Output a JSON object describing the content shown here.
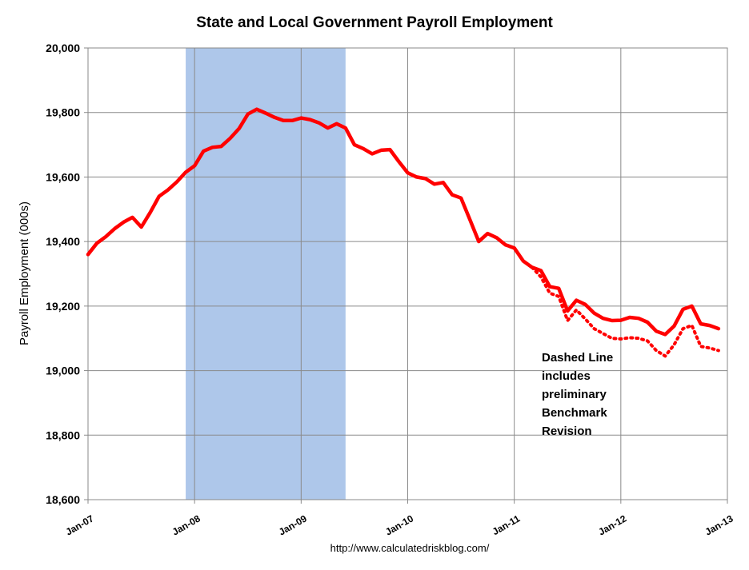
{
  "chart_data": {
    "type": "line",
    "title": "State and Local Government Payroll Employment",
    "ylabel": "Payroll Employment (000s)",
    "xlabel": "",
    "ylim": [
      18600,
      20000
    ],
    "yticks": [
      "18,600",
      "18,800",
      "19,000",
      "19,200",
      "19,400",
      "19,600",
      "19,800",
      "20,000"
    ],
    "yticks_values": [
      18600,
      18800,
      19000,
      19200,
      19400,
      19600,
      19800,
      20000
    ],
    "xticks": [
      "Jan-07",
      "Jan-08",
      "Jan-09",
      "Jan-10",
      "Jan-11",
      "Jan-12",
      "Jan-13"
    ],
    "xlim": [
      "2007-01",
      "2013-01"
    ],
    "grid": true,
    "recession_shading": {
      "start": "2007-12",
      "end": "2009-06",
      "color": "#aec7ea"
    },
    "line_color": "#ff0000",
    "series": [
      {
        "style": "solid",
        "x": [
          "2007-01",
          "2007-02",
          "2007-03",
          "2007-04",
          "2007-05",
          "2007-06",
          "2007-07",
          "2007-08",
          "2007-09",
          "2007-10",
          "2007-11",
          "2007-12",
          "2008-01",
          "2008-02",
          "2008-03",
          "2008-04",
          "2008-05",
          "2008-06",
          "2008-07",
          "2008-08",
          "2008-09",
          "2008-10",
          "2008-11",
          "2008-12",
          "2009-01",
          "2009-02",
          "2009-03",
          "2009-04",
          "2009-05",
          "2009-06",
          "2009-07",
          "2009-08",
          "2009-09",
          "2009-10",
          "2009-11",
          "2009-12",
          "2010-01",
          "2010-02",
          "2010-03",
          "2010-04",
          "2010-05",
          "2010-06",
          "2010-07",
          "2010-08",
          "2010-09",
          "2010-10",
          "2010-11",
          "2010-12",
          "2011-01",
          "2011-02",
          "2011-03",
          "2011-04",
          "2011-05",
          "2011-06",
          "2011-07",
          "2011-08",
          "2011-09",
          "2011-10",
          "2011-11",
          "2011-12",
          "2012-01",
          "2012-02",
          "2012-03",
          "2012-04",
          "2012-05",
          "2012-06",
          "2012-07",
          "2012-08",
          "2012-09",
          "2012-10",
          "2012-11",
          "2012-12"
        ],
        "values": [
          19360,
          19395,
          19415,
          19440,
          19460,
          19475,
          19445,
          19490,
          19540,
          19560,
          19585,
          19615,
          19635,
          19680,
          19692,
          19695,
          19720,
          19750,
          19795,
          19810,
          19798,
          19785,
          19775,
          19775,
          19783,
          19778,
          19768,
          19752,
          19765,
          19752,
          19700,
          19688,
          19672,
          19683,
          19685,
          19648,
          19613,
          19600,
          19595,
          19578,
          19583,
          19545,
          19535,
          19468,
          19400,
          19425,
          19412,
          19390,
          19380,
          19340,
          19320,
          19310,
          19260,
          19255,
          19185,
          19218,
          19205,
          19178,
          19162,
          19155,
          19156,
          19165,
          19162,
          19150,
          19122,
          19112,
          19138,
          19190,
          19200,
          19145,
          19140,
          19130
        ]
      },
      {
        "style": "dotted",
        "x": [
          "2011-03",
          "2011-04",
          "2011-05",
          "2011-06",
          "2011-07",
          "2011-08",
          "2011-09",
          "2011-10",
          "2011-11",
          "2011-12",
          "2012-01",
          "2012-02",
          "2012-03",
          "2012-04",
          "2012-05",
          "2012-06",
          "2012-07",
          "2012-08",
          "2012-09",
          "2012-10",
          "2012-11",
          "2012-12"
        ],
        "values": [
          19320,
          19290,
          19240,
          19230,
          19155,
          19188,
          19160,
          19130,
          19115,
          19100,
          19098,
          19102,
          19100,
          19092,
          19062,
          19045,
          19080,
          19130,
          19140,
          19075,
          19070,
          19062
        ]
      }
    ],
    "annotation": [
      "Dashed Line",
      "includes",
      "preliminary",
      "Benchmark",
      "Revision"
    ],
    "source": "http://www.calculatedriskblog.com/"
  }
}
